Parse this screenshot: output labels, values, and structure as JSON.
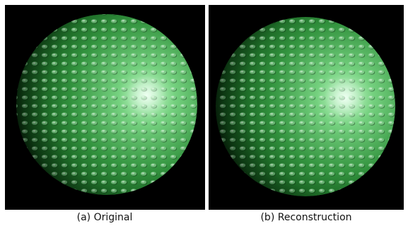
{
  "figure": {
    "panels": [
      {
        "caption": "(a) Original"
      },
      {
        "caption": "(b) Reconstruction"
      }
    ]
  }
}
